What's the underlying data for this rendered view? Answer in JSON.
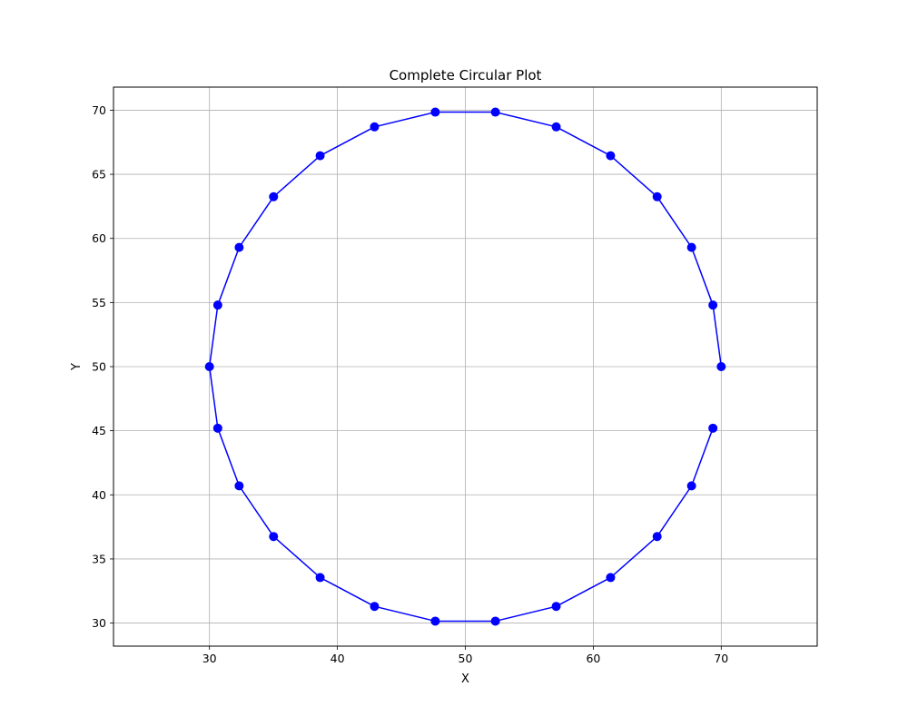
{
  "chart_data": {
    "type": "line",
    "title": "Complete Circular Plot",
    "xlabel": "X",
    "ylabel": "Y",
    "xlim": [
      22.5,
      77.5
    ],
    "ylim": [
      28.2,
      71.8
    ],
    "xticks": [
      30,
      40,
      50,
      60,
      70
    ],
    "yticks": [
      30,
      35,
      40,
      45,
      50,
      55,
      60,
      65,
      70
    ],
    "grid": true,
    "legend": "none",
    "series": [
      {
        "color": "#0000ff",
        "marker": "circle",
        "x": [
          70,
          69.35,
          67.68,
          64.99,
          61.35,
          57.1,
          52.35,
          47.65,
          42.9,
          38.65,
          35.01,
          32.32,
          30.65,
          30,
          30.65,
          32.32,
          35.01,
          38.65,
          42.9,
          47.65,
          52.35,
          57.1,
          61.35,
          64.99,
          67.68,
          69.35
        ],
        "y": [
          50,
          54.8,
          59.3,
          63.25,
          66.45,
          68.7,
          69.85,
          69.85,
          68.7,
          66.45,
          63.25,
          59.3,
          54.8,
          50,
          45.2,
          40.7,
          36.75,
          33.55,
          31.3,
          30.15,
          30.15,
          31.3,
          33.55,
          36.75,
          40.7,
          45.2
        ]
      }
    ]
  }
}
